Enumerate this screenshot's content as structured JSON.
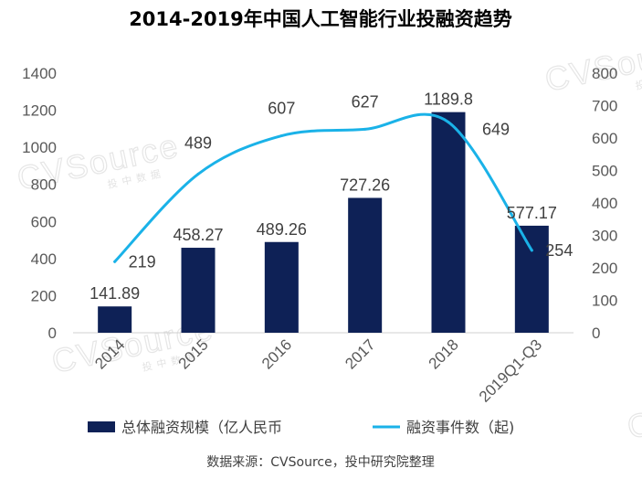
{
  "chart_data": {
    "type": "bar+line",
    "title": "2014-2019年中国人工智能行业投融资趋势",
    "categories": [
      "2014",
      "2015",
      "2016",
      "2017",
      "2018",
      "2019Q1-Q3"
    ],
    "series": [
      {
        "name": "总体融资规模（亿人民币",
        "type": "bar",
        "axis": "left",
        "color": "#0e2156",
        "values": [
          141.89,
          458.27,
          489.26,
          727.26,
          1189.8,
          577.17
        ],
        "labels": [
          "141.89",
          "458.27",
          "489.26",
          "727.26",
          "1189.8",
          "577.17"
        ]
      },
      {
        "name": "融资事件数（起)",
        "type": "line",
        "axis": "right",
        "color": "#1ab2e8",
        "values": [
          219,
          489,
          607,
          627,
          649,
          254
        ],
        "labels": [
          "219",
          "489",
          "607",
          "627",
          "649",
          "254"
        ]
      }
    ],
    "y_left": {
      "min": 0,
      "max": 1400,
      "ticks": [
        "0",
        "200",
        "400",
        "600",
        "800",
        "1000",
        "1200",
        "1400"
      ]
    },
    "y_right": {
      "min": 0,
      "max": 800,
      "ticks": [
        "0",
        "100",
        "200",
        "300",
        "400",
        "500",
        "600",
        "700",
        "800"
      ]
    },
    "grid": false,
    "legend": "bottom",
    "source": "数据来源：CVSource，投中研究院整理",
    "watermark": {
      "brand": "CVSource",
      "sub": "投中数据"
    }
  }
}
